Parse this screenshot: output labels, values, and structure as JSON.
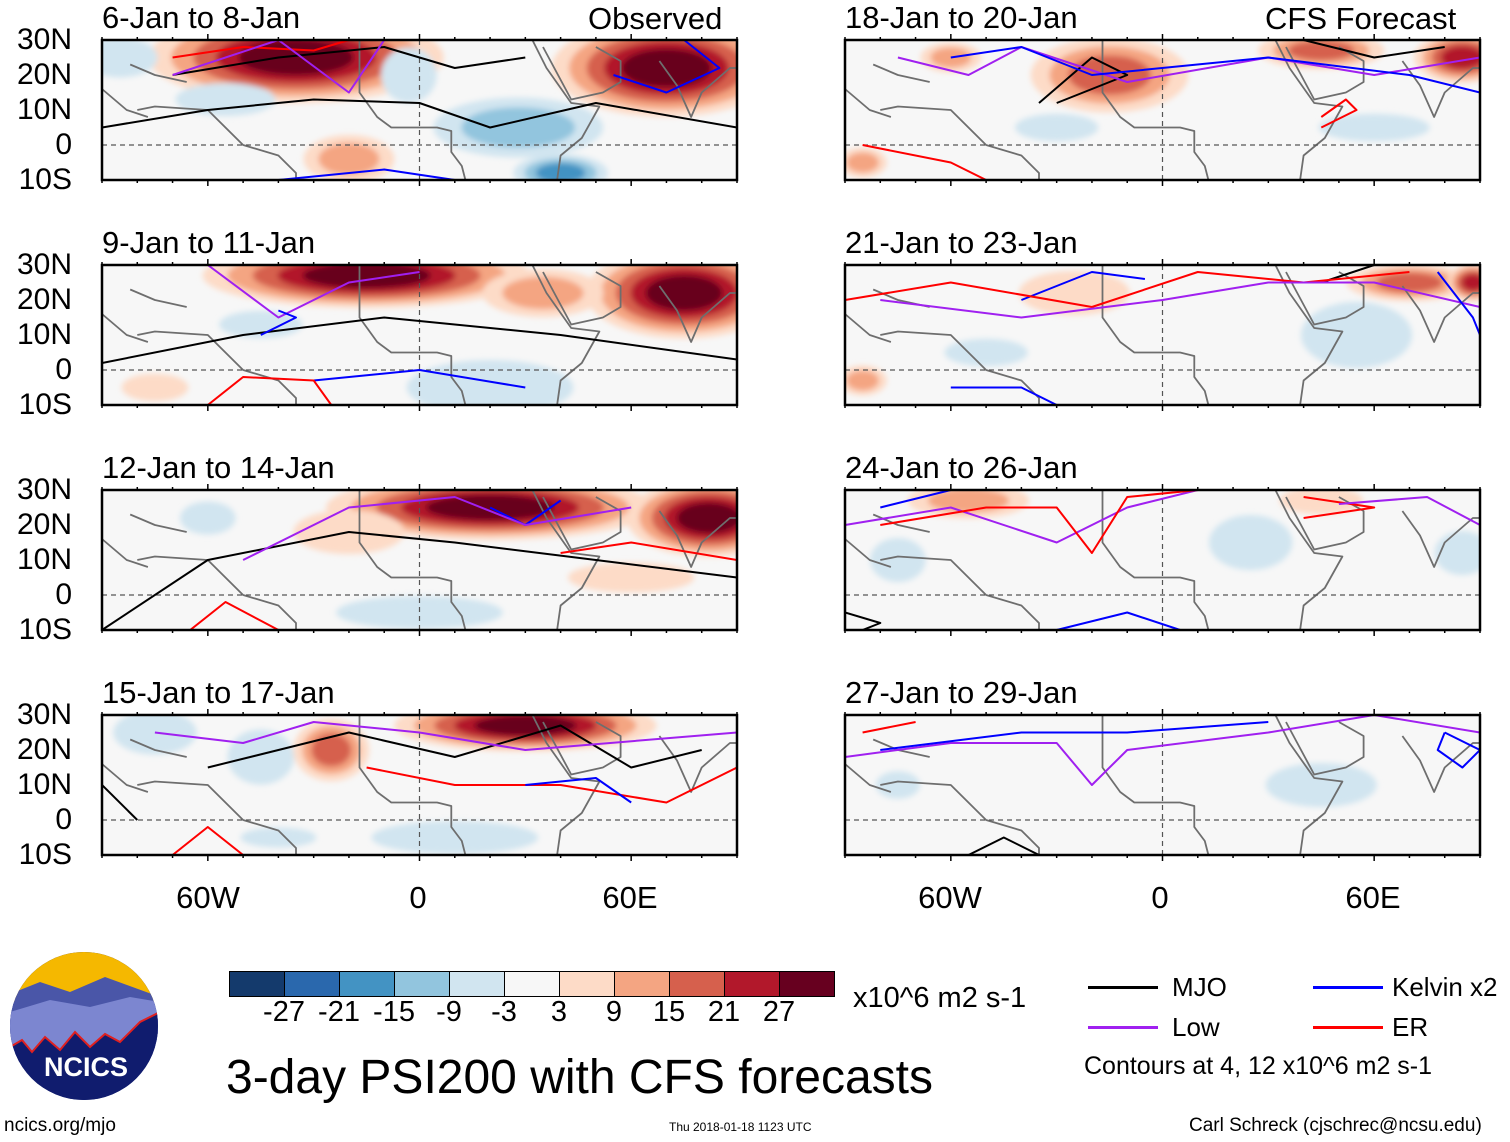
{
  "header": {
    "observed_label": "Observed",
    "forecast_label": "CFS Forecast"
  },
  "panels": [
    {
      "title": "6-Jan to 8-Jan",
      "column": "observed"
    },
    {
      "title": "9-Jan to 11-Jan",
      "column": "observed"
    },
    {
      "title": "12-Jan to 14-Jan",
      "column": "observed"
    },
    {
      "title": "15-Jan to 17-Jan",
      "column": "observed"
    },
    {
      "title": "18-Jan to 20-Jan",
      "column": "forecast"
    },
    {
      "title": "21-Jan to 23-Jan",
      "column": "forecast"
    },
    {
      "title": "24-Jan to 26-Jan",
      "column": "forecast"
    },
    {
      "title": "27-Jan to 29-Jan",
      "column": "forecast"
    }
  ],
  "axes": {
    "lat_labels": [
      "30N",
      "20N",
      "10N",
      "0",
      "10S"
    ],
    "lon_labels": [
      "60W",
      "0",
      "60E"
    ]
  },
  "colorbar": {
    "ticks": [
      "-27",
      "-21",
      "-15",
      "-9",
      "-3",
      "3",
      "9",
      "15",
      "21",
      "27"
    ],
    "colors": [
      "#143a6c",
      "#2a68ad",
      "#4393c3",
      "#92c5de",
      "#d1e5f0",
      "#f7f7f7",
      "#fddbc7",
      "#f4a582",
      "#d6604d",
      "#b2182b",
      "#67001f"
    ],
    "units": "x10^6 m2 s-1"
  },
  "legend": {
    "items": [
      {
        "label": "MJO",
        "color": "#000000"
      },
      {
        "label": "Kelvin x2",
        "color": "#0000ff"
      },
      {
        "label": "Low",
        "color": "#a020f0"
      },
      {
        "label": "ER",
        "color": "#ff0000"
      }
    ],
    "contours_note": "Contours at 4, 12 x10^6 m2 s-1"
  },
  "title": "3-day PSI200 with CFS forecasts",
  "logo": {
    "text": "NCICS"
  },
  "footer": {
    "url": "ncics.org/mjo",
    "timestamp": "Thu 2018-01-18 1123 UTC",
    "author": "Carl Schreck (cjschrec@ncsu.edu)"
  }
}
